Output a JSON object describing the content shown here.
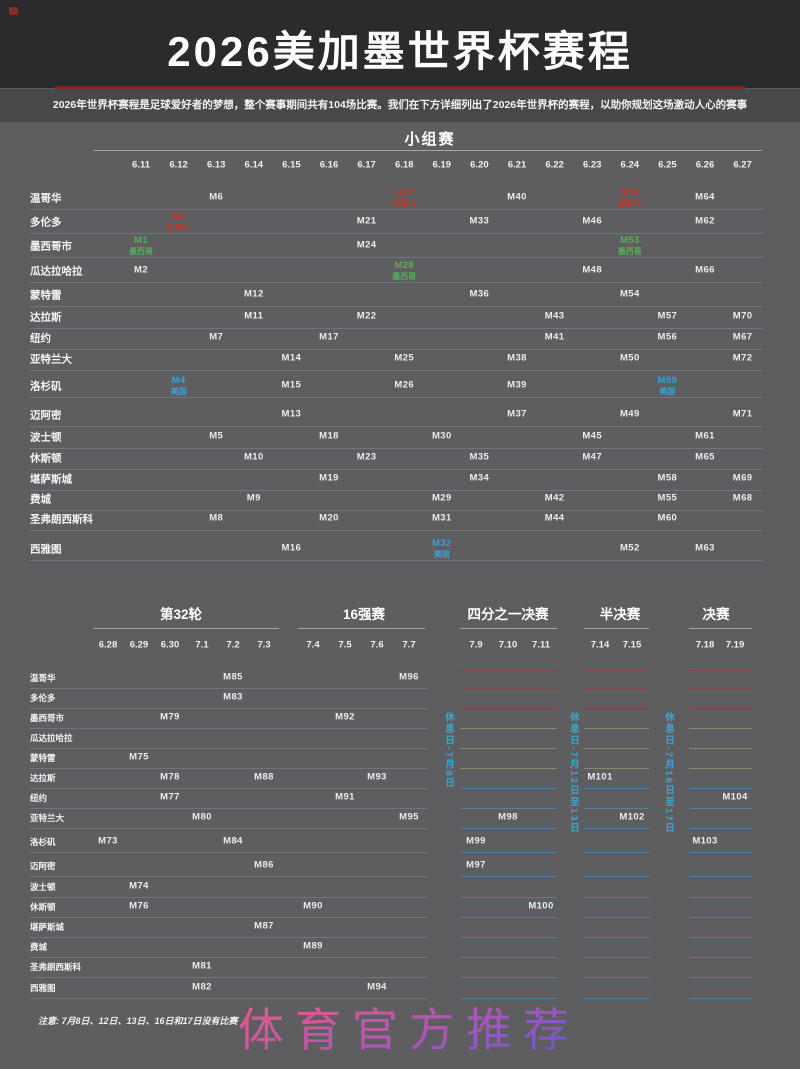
{
  "colors": {
    "background": "#5e5e60",
    "header_band": "#2b2b2d",
    "subtitle_band": "#48484a",
    "title_underline_red": "#7c2a1f",
    "mexico_green": "#55b058",
    "canada_red": "#c0392b",
    "usa_blue": "#3aa0d8",
    "rest_day_blue": "#3aa8cf",
    "slot_line_red": "#8a4440",
    "slot_line_green": "#84936f",
    "slot_line_blue": "#4f87a8",
    "watermark_pink": "#d85fa8"
  },
  "chart_data": {
    "type": "table",
    "title": "2026美加墨世界杯赛程",
    "subtitle": "2026年世界杯赛程是足球爱好者的梦想，整个赛事期间共有104场比赛。我们在下方详细列出了2026年世界杯的赛程，以助你规划这场激动人心的赛事",
    "note": "注意: 7月8日、12日、13日、16日和17日没有比赛",
    "watermark": "体育官方推荐",
    "group_stage": {
      "title": "小组赛",
      "dates": [
        "6.11",
        "6.12",
        "6.13",
        "6.14",
        "6.15",
        "6.16",
        "6.17",
        "6.18",
        "6.19",
        "6.20",
        "6.21",
        "6.22",
        "6.23",
        "6.24",
        "6.25",
        "6.26",
        "6.27"
      ],
      "rows": [
        {
          "city": "温哥华",
          "matches": [
            {
              "m": "M6",
              "d": "6.13"
            },
            {
              "m": "M27",
              "d": "6.18",
              "host": "加拿大",
              "c": "red"
            },
            {
              "m": "M40",
              "d": "6.21"
            },
            {
              "m": "M51",
              "d": "6.24",
              "host": "加拿大",
              "c": "red"
            },
            {
              "m": "M64",
              "d": "6.26"
            }
          ]
        },
        {
          "city": "多伦多",
          "matches": [
            {
              "m": "M3",
              "d": "6.12",
              "host": "加拿大",
              "c": "red"
            },
            {
              "m": "M21",
              "d": "6.17"
            },
            {
              "m": "M33",
              "d": "6.20"
            },
            {
              "m": "M46",
              "d": "6.23"
            },
            {
              "m": "M62",
              "d": "6.26"
            }
          ]
        },
        {
          "city": "墨西哥市",
          "matches": [
            {
              "m": "M1",
              "d": "6.11",
              "host": "墨西哥",
              "c": "green"
            },
            {
              "m": "M24",
              "d": "6.17"
            },
            {
              "m": "M53",
              "d": "6.24",
              "host": "墨西哥",
              "c": "green"
            }
          ]
        },
        {
          "city": "瓜达拉哈拉",
          "matches": [
            {
              "m": "M2",
              "d": "6.11"
            },
            {
              "m": "M28",
              "d": "6.18",
              "host": "墨西哥",
              "c": "green"
            },
            {
              "m": "M48",
              "d": "6.23"
            },
            {
              "m": "M66",
              "d": "6.26"
            }
          ]
        },
        {
          "city": "蒙特雷",
          "matches": [
            {
              "m": "M12",
              "d": "6.14"
            },
            {
              "m": "M36",
              "d": "6.20"
            },
            {
              "m": "M54",
              "d": "6.24"
            }
          ]
        },
        {
          "city": "达拉斯",
          "matches": [
            {
              "m": "M11",
              "d": "6.14"
            },
            {
              "m": "M22",
              "d": "6.17"
            },
            {
              "m": "M43",
              "d": "6.22"
            },
            {
              "m": "M57",
              "d": "6.25"
            },
            {
              "m": "M70",
              "d": "6.27"
            }
          ]
        },
        {
          "city": "纽约",
          "matches": [
            {
              "m": "M7",
              "d": "6.13"
            },
            {
              "m": "M17",
              "d": "6.16"
            },
            {
              "m": "M41",
              "d": "6.22"
            },
            {
              "m": "M56",
              "d": "6.25"
            },
            {
              "m": "M67",
              "d": "6.27"
            }
          ]
        },
        {
          "city": "亚特兰大",
          "matches": [
            {
              "m": "M14",
              "d": "6.15"
            },
            {
              "m": "M25",
              "d": "6.18"
            },
            {
              "m": "M38",
              "d": "6.21"
            },
            {
              "m": "M50",
              "d": "6.24"
            },
            {
              "m": "M72",
              "d": "6.27"
            }
          ]
        },
        {
          "city": "洛杉矶",
          "matches": [
            {
              "m": "M4",
              "d": "6.12",
              "host": "美国",
              "c": "blue"
            },
            {
              "m": "M15",
              "d": "6.15"
            },
            {
              "m": "M26",
              "d": "6.18"
            },
            {
              "m": "M39",
              "d": "6.21"
            },
            {
              "m": "M59",
              "d": "6.25",
              "host": "美国",
              "c": "blue"
            }
          ]
        },
        {
          "city": "迈阿密",
          "matches": [
            {
              "m": "M13",
              "d": "6.15"
            },
            {
              "m": "M37",
              "d": "6.21"
            },
            {
              "m": "M49",
              "d": "6.24"
            },
            {
              "m": "M71",
              "d": "6.27"
            }
          ]
        },
        {
          "city": "波士顿",
          "matches": [
            {
              "m": "M5",
              "d": "6.13"
            },
            {
              "m": "M18",
              "d": "6.16"
            },
            {
              "m": "M30",
              "d": "6.19"
            },
            {
              "m": "M45",
              "d": "6.23"
            },
            {
              "m": "M61",
              "d": "6.26"
            }
          ]
        },
        {
          "city": "休斯顿",
          "matches": [
            {
              "m": "M10",
              "d": "6.14"
            },
            {
              "m": "M23",
              "d": "6.17"
            },
            {
              "m": "M35",
              "d": "6.20"
            },
            {
              "m": "M47",
              "d": "6.23"
            },
            {
              "m": "M65",
              "d": "6.26"
            }
          ]
        },
        {
          "city": "堪萨斯城",
          "matches": [
            {
              "m": "M19",
              "d": "6.16"
            },
            {
              "m": "M34",
              "d": "6.20"
            },
            {
              "m": "M58",
              "d": "6.25"
            },
            {
              "m": "M69",
              "d": "6.27"
            }
          ]
        },
        {
          "city": "费城",
          "matches": [
            {
              "m": "M9",
              "d": "6.14"
            },
            {
              "m": "M29",
              "d": "6.19"
            },
            {
              "m": "M42",
              "d": "6.22"
            },
            {
              "m": "M55",
              "d": "6.25"
            },
            {
              "m": "M68",
              "d": "6.27"
            }
          ]
        },
        {
          "city": "圣弗朗西斯科",
          "matches": [
            {
              "m": "M8",
              "d": "6.13"
            },
            {
              "m": "M20",
              "d": "6.16"
            },
            {
              "m": "M31",
              "d": "6.19"
            },
            {
              "m": "M44",
              "d": "6.22"
            },
            {
              "m": "M60",
              "d": "6.25"
            }
          ]
        },
        {
          "city": "西雅图",
          "matches": [
            {
              "m": "M16",
              "d": "6.15"
            },
            {
              "m": "M32",
              "d": "6.19",
              "host": "美国",
              "c": "blue"
            },
            {
              "m": "M52",
              "d": "6.24"
            },
            {
              "m": "M63",
              "d": "6.26"
            }
          ]
        }
      ]
    },
    "knockout": {
      "sections": [
        {
          "title": "第32轮",
          "dates": [
            "6.28",
            "6.29",
            "6.30",
            "7.1",
            "7.2",
            "7.3"
          ]
        },
        {
          "title": "16强赛",
          "dates": [
            "7.4",
            "7.5",
            "7.6",
            "7.7"
          ]
        },
        {
          "title": "四分之一决赛",
          "dates": [
            "7.9",
            "7.10",
            "7.11"
          ]
        },
        {
          "title": "半决赛",
          "dates": [
            "7.14",
            "7.15"
          ]
        },
        {
          "title": "决赛",
          "dates": [
            "7.18",
            "7.19"
          ]
        }
      ],
      "rest_days": [
        "休息日-7月8日",
        "休息日-7月12日至13日",
        "休息日-7月16日至17日"
      ],
      "rows": [
        {
          "city": "温哥华",
          "matches": [
            {
              "m": "M85",
              "d": "7.2"
            },
            {
              "m": "M96",
              "d": "7.7"
            }
          ]
        },
        {
          "city": "多伦多",
          "matches": [
            {
              "m": "M83",
              "d": "7.2"
            }
          ]
        },
        {
          "city": "墨西哥市",
          "matches": [
            {
              "m": "M79",
              "d": "6.30"
            },
            {
              "m": "M92",
              "d": "7.5"
            }
          ]
        },
        {
          "city": "瓜达拉哈拉",
          "matches": []
        },
        {
          "city": "蒙特雷",
          "matches": [
            {
              "m": "M75",
              "d": "6.29"
            }
          ]
        },
        {
          "city": "达拉斯",
          "matches": [
            {
              "m": "M78",
              "d": "6.30"
            },
            {
              "m": "M88",
              "d": "7.3"
            },
            {
              "m": "M93",
              "d": "7.6"
            },
            {
              "m": "M101",
              "d": "7.14"
            }
          ]
        },
        {
          "city": "纽约",
          "matches": [
            {
              "m": "M77",
              "d": "6.30"
            },
            {
              "m": "M91",
              "d": "7.5"
            },
            {
              "m": "M104",
              "d": "7.19"
            }
          ]
        },
        {
          "city": "亚特兰大",
          "matches": [
            {
              "m": "M80",
              "d": "7.1"
            },
            {
              "m": "M95",
              "d": "7.7"
            },
            {
              "m": "M98",
              "d": "7.10"
            },
            {
              "m": "M102",
              "d": "7.15"
            }
          ]
        },
        {
          "city": "洛杉矶",
          "matches": [
            {
              "m": "M73",
              "d": "6.28"
            },
            {
              "m": "M84",
              "d": "7.2"
            },
            {
              "m": "M99",
              "d": "7.9"
            },
            {
              "m": "M103",
              "d": "7.18"
            }
          ]
        },
        {
          "city": "迈阿密",
          "matches": [
            {
              "m": "M86",
              "d": "7.3"
            },
            {
              "m": "M97",
              "d": "7.9"
            }
          ]
        },
        {
          "city": "波士顿",
          "matches": [
            {
              "m": "M74",
              "d": "6.29"
            }
          ]
        },
        {
          "city": "休斯顿",
          "matches": [
            {
              "m": "M76",
              "d": "6.29"
            },
            {
              "m": "M90",
              "d": "7.4"
            },
            {
              "m": "M100",
              "d": "7.11"
            }
          ]
        },
        {
          "city": "堪萨斯城",
          "matches": [
            {
              "m": "M87",
              "d": "7.3"
            }
          ]
        },
        {
          "city": "费城",
          "matches": [
            {
              "m": "M89",
              "d": "7.4"
            }
          ]
        },
        {
          "city": "圣弗朗西斯科",
          "matches": [
            {
              "m": "M81",
              "d": "7.1"
            }
          ]
        },
        {
          "city": "西雅图",
          "matches": [
            {
              "m": "M82",
              "d": "7.1"
            },
            {
              "m": "M94",
              "d": "7.6"
            }
          ]
        }
      ]
    }
  }
}
